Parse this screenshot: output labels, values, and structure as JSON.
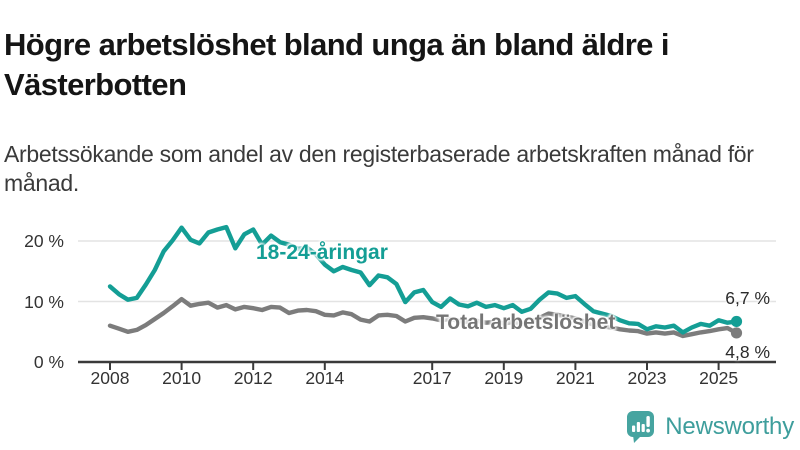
{
  "title": "Högre arbetslöshet bland unga än bland äldre i Västerbotten",
  "subtitle": "Arbetssökande som andel av den registerbaserade arbetskraften månad för månad.",
  "chart_data": {
    "type": "line",
    "title": "Högre arbetslöshet bland unga än bland äldre i Västerbotten",
    "xlabel": "",
    "ylabel": "Arbetssökande som andel av den registerbaserade arbetskraften",
    "grid": "horizontal-light",
    "xlim": [
      2007.5,
      2026.3
    ],
    "ylim": [
      0,
      24
    ],
    "x_ticks": [
      2008,
      2010,
      2012,
      2014,
      2017,
      2019,
      2021,
      2023,
      2025
    ],
    "y_ticks": [
      0,
      10,
      20
    ],
    "y_tick_labels": [
      "0 %",
      "10 %",
      "20 %"
    ],
    "x": [
      2008.0,
      2008.25,
      2008.5,
      2008.75,
      2009.0,
      2009.25,
      2009.5,
      2009.75,
      2010.0,
      2010.25,
      2010.5,
      2010.75,
      2011.0,
      2011.25,
      2011.5,
      2011.75,
      2012.0,
      2012.25,
      2012.5,
      2012.75,
      2013.0,
      2013.25,
      2013.5,
      2013.75,
      2014.0,
      2014.25,
      2014.5,
      2014.75,
      2015.0,
      2015.25,
      2015.5,
      2015.75,
      2016.0,
      2016.25,
      2016.5,
      2016.75,
      2017.0,
      2017.25,
      2017.5,
      2017.75,
      2018.0,
      2018.25,
      2018.5,
      2018.75,
      2019.0,
      2019.25,
      2019.5,
      2019.75,
      2020.0,
      2020.25,
      2020.5,
      2020.75,
      2021.0,
      2021.25,
      2021.5,
      2021.75,
      2022.0,
      2022.25,
      2022.5,
      2022.75,
      2023.0,
      2023.25,
      2023.5,
      2023.75,
      2024.0,
      2024.25,
      2024.5,
      2024.75,
      2025.0,
      2025.25,
      2025.5
    ],
    "series": [
      {
        "name": "18-24-åringar",
        "color": "#149e95",
        "end_label": "6,7 %",
        "end_value": 6.7,
        "values": [
          12.5,
          11.2,
          10.3,
          10.6,
          12.8,
          15.2,
          18.3,
          20.1,
          22.2,
          20.2,
          19.6,
          21.4,
          21.9,
          22.3,
          18.8,
          21.1,
          21.9,
          19.4,
          20.9,
          19.8,
          19.4,
          18.7,
          18.9,
          17.8,
          16.1,
          15.0,
          15.7,
          15.2,
          14.8,
          12.7,
          14.3,
          14.0,
          12.9,
          9.9,
          11.5,
          11.9,
          9.9,
          9.1,
          10.5,
          9.5,
          9.2,
          9.8,
          9.1,
          9.4,
          8.9,
          9.4,
          8.3,
          8.8,
          10.3,
          11.5,
          11.3,
          10.6,
          10.9,
          9.6,
          8.4,
          8.0,
          7.6,
          6.9,
          6.4,
          6.3,
          5.4,
          5.9,
          5.7,
          6.0,
          4.9,
          5.7,
          6.3,
          6.0,
          6.9,
          6.5,
          6.7
        ]
      },
      {
        "name": "Total arbetslöshet",
        "color": "#7c7c7c",
        "end_label": "4,8 %",
        "end_value": 4.8,
        "values": [
          6.0,
          5.5,
          5.0,
          5.3,
          6.1,
          7.1,
          8.1,
          9.2,
          10.4,
          9.3,
          9.6,
          9.8,
          9.0,
          9.4,
          8.7,
          9.1,
          8.9,
          8.6,
          9.1,
          9.0,
          8.1,
          8.5,
          8.6,
          8.4,
          7.8,
          7.7,
          8.2,
          7.9,
          7.0,
          6.7,
          7.7,
          7.8,
          7.6,
          6.7,
          7.3,
          7.4,
          7.2,
          6.9,
          7.1,
          6.8,
          6.6,
          6.8,
          6.5,
          6.6,
          6.4,
          6.6,
          6.3,
          6.6,
          7.3,
          8.0,
          7.8,
          7.5,
          7.2,
          6.7,
          6.2,
          5.9,
          5.7,
          5.4,
          5.2,
          5.1,
          4.7,
          4.9,
          4.7,
          4.9,
          4.3,
          4.6,
          4.9,
          5.1,
          5.4,
          5.6,
          4.8
        ]
      }
    ]
  },
  "branding": {
    "logo_text": "Newsworthy",
    "logo_color": "#3e9e9c",
    "icon_color": "#46a4a0",
    "icon_name": "newsworthy-bar-chart-bubble-icon"
  }
}
